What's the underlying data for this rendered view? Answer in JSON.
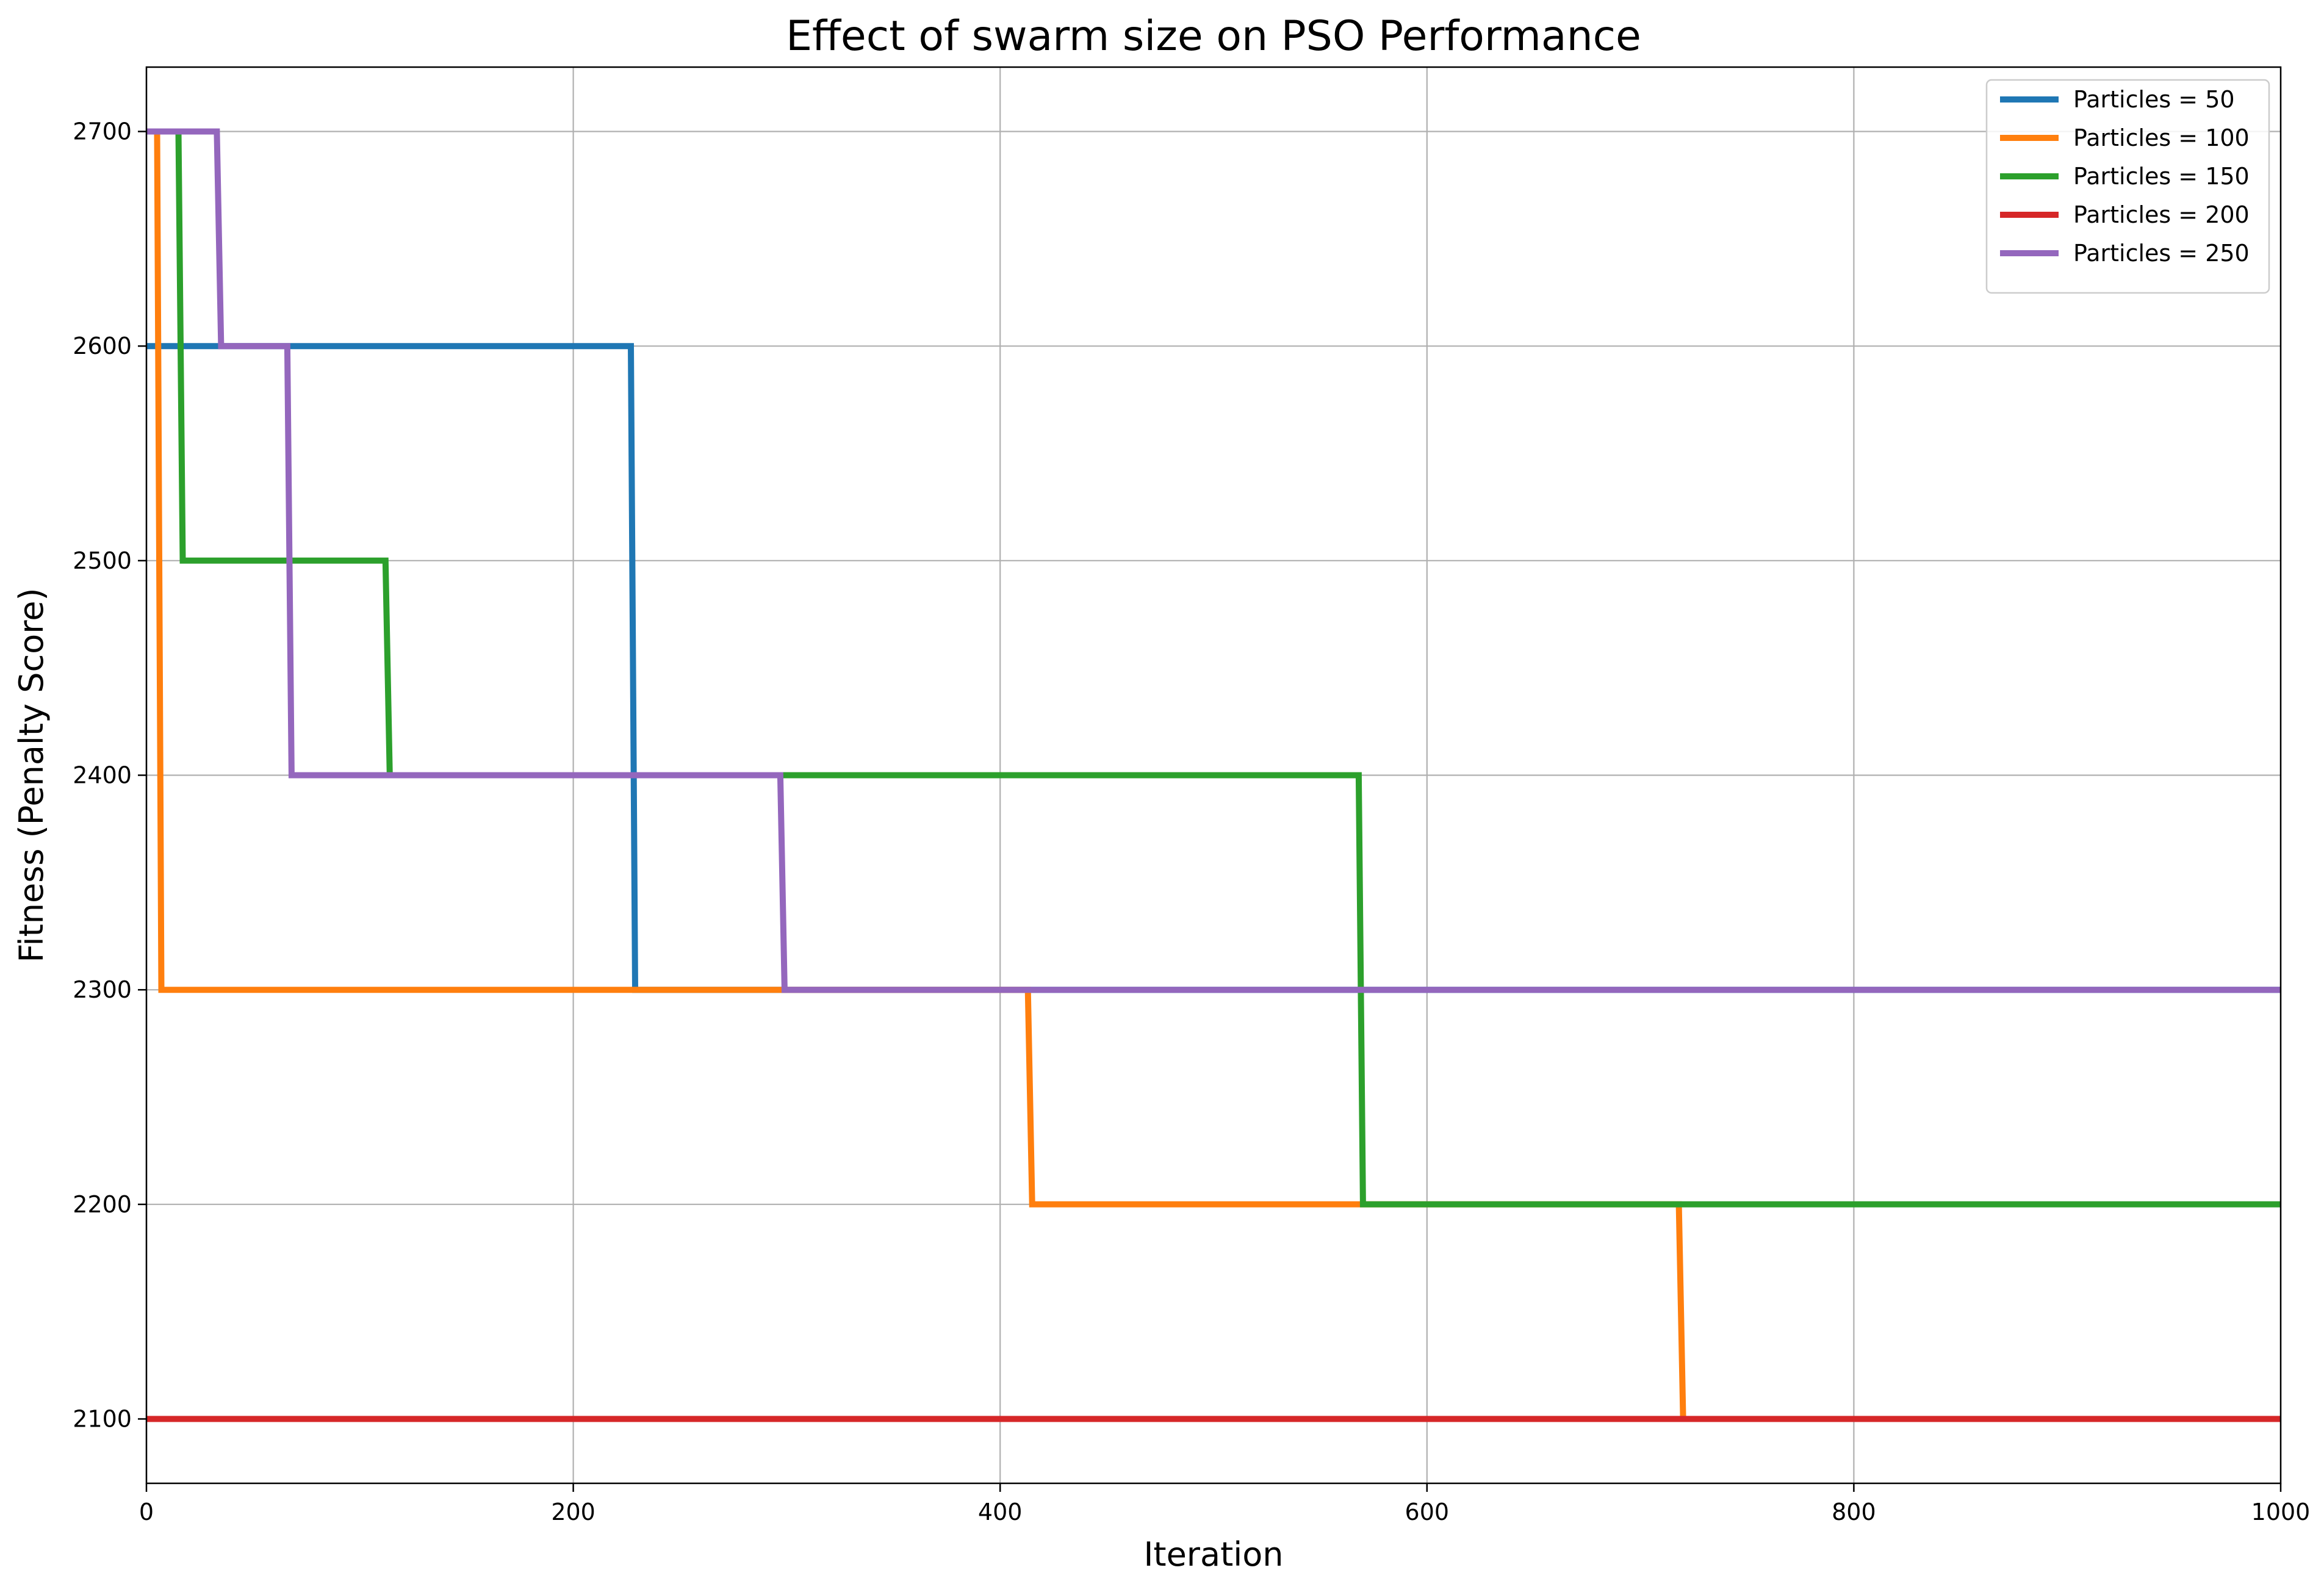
{
  "chart_data": {
    "type": "line",
    "title": "Effect of swarm size on PSO Performance",
    "xlabel": "Iteration",
    "ylabel": "Fitness (Penalty Score)",
    "xlim": [
      0,
      1000
    ],
    "ylim": [
      2070,
      2730
    ],
    "xticks": [
      0,
      200,
      400,
      600,
      800,
      1000
    ],
    "yticks": [
      2100,
      2200,
      2300,
      2400,
      2500,
      2600,
      2700
    ],
    "grid": true,
    "legend_position": "top-right",
    "line_style": "step",
    "series": [
      {
        "name": "Particles = 50",
        "color": "#1f77b4",
        "x": [
          0,
          227,
          229,
          1000
        ],
        "y": [
          2600,
          2600,
          2300,
          2300
        ]
      },
      {
        "name": "Particles = 100",
        "color": "#ff7f0e",
        "x": [
          0,
          5,
          7,
          413,
          415,
          718,
          720,
          1000
        ],
        "y": [
          2700,
          2700,
          2300,
          2300,
          2200,
          2200,
          2100,
          2100
        ]
      },
      {
        "name": "Particles = 150",
        "color": "#2ca02c",
        "x": [
          0,
          15,
          17,
          112,
          114,
          568,
          570,
          1000
        ],
        "y": [
          2700,
          2700,
          2500,
          2500,
          2400,
          2400,
          2200,
          2200
        ]
      },
      {
        "name": "Particles = 200",
        "color": "#d62728",
        "x": [
          0,
          1000
        ],
        "y": [
          2100,
          2100
        ]
      },
      {
        "name": "Particles = 250",
        "color": "#9467bd",
        "x": [
          0,
          33,
          35,
          66,
          68,
          297,
          299,
          1000
        ],
        "y": [
          2700,
          2700,
          2600,
          2600,
          2400,
          2400,
          2300,
          2300
        ]
      }
    ]
  }
}
